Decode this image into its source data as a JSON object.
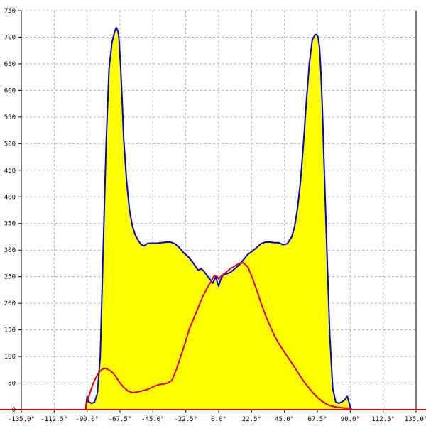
{
  "chart_data": {
    "type": "area",
    "title": "",
    "xlabel": "",
    "ylabel": "",
    "xlim": [
      -135,
      135
    ],
    "ylim": [
      0,
      750
    ],
    "grid": true,
    "legend": "none",
    "x_ticks": [
      -135,
      -112.5,
      -90,
      -67.5,
      -45,
      -22.5,
      0,
      22.5,
      45,
      67.5,
      90,
      112.5,
      135
    ],
    "x_tick_labels": [
      "-135.0°",
      "-112.5°",
      "-90.0°",
      "-67.5°",
      "-45.0°",
      "-22.5°",
      "0.0°",
      "22.5°",
      "45.0°",
      "67.5°",
      "90.0°",
      "112.5°",
      "135.0°"
    ],
    "y_ticks": [
      0,
      50,
      100,
      150,
      200,
      250,
      300,
      350,
      400,
      450,
      500,
      550,
      600,
      650,
      700,
      750
    ],
    "y_tick_labels": [
      "0",
      "50",
      "100",
      "150",
      "200",
      "250",
      "300",
      "350",
      "400",
      "450",
      "500",
      "550",
      "600",
      "650",
      "700",
      "750"
    ],
    "series": [
      {
        "color": "#0000cc",
        "fill": "#ffff00",
        "x": [
          -135,
          -91,
          -90,
          -89,
          -87,
          -85,
          -83,
          -81,
          -79,
          -77,
          -75,
          -73,
          -71,
          -70,
          -69,
          -68.5,
          -68,
          -67,
          -66,
          -65,
          -63,
          -61,
          -59,
          -57,
          -55,
          -53,
          -51,
          -49,
          -47,
          -45,
          -42,
          -39,
          -36,
          -33,
          -30,
          -27,
          -24,
          -21,
          -18,
          -16,
          -14,
          -12,
          -10,
          -8,
          -6,
          -4,
          -2,
          -1,
          0,
          1,
          3,
          5,
          8,
          11,
          14,
          17,
          20,
          23,
          26,
          29,
          32,
          35,
          38,
          41,
          44,
          47,
          50,
          52,
          54,
          56,
          58,
          60,
          62,
          64,
          66,
          67,
          68,
          69,
          70,
          71,
          72,
          74,
          76,
          78,
          80,
          82,
          84,
          86,
          88,
          89,
          90,
          91,
          135
        ],
        "y": [
          0,
          0,
          25,
          15,
          12,
          14,
          30,
          100,
          300,
          500,
          640,
          690,
          712,
          718,
          712,
          705,
          690,
          640,
          580,
          510,
          430,
          375,
          345,
          328,
          318,
          310,
          308,
          312,
          313,
          313,
          313,
          314,
          315,
          315,
          312,
          305,
          295,
          288,
          278,
          270,
          262,
          265,
          260,
          252,
          245,
          238,
          250,
          240,
          232,
          242,
          253,
          255,
          258,
          265,
          272,
          282,
          292,
          298,
          305,
          312,
          315,
          315,
          314,
          314,
          310,
          312,
          325,
          345,
          380,
          430,
          500,
          580,
          650,
          695,
          705,
          705,
          700,
          680,
          630,
          560,
          470,
          300,
          140,
          40,
          15,
          12,
          14,
          18,
          25,
          15,
          5,
          0,
          0
        ]
      },
      {
        "color": "#dd0000",
        "fill": "none",
        "x": [
          -135,
          -91,
          -90,
          -88,
          -86,
          -84,
          -82,
          -80,
          -78,
          -76,
          -74,
          -72,
          -70,
          -68,
          -65,
          -62,
          -59,
          -56,
          -53,
          -50,
          -47,
          -44,
          -41,
          -38,
          -35,
          -32,
          -29,
          -26,
          -23,
          -20,
          -17,
          -14,
          -11,
          -8,
          -5,
          -3,
          -1,
          0,
          2,
          5,
          8,
          11,
          14,
          17,
          20,
          23,
          26,
          29,
          32,
          35,
          38,
          41,
          44,
          47,
          50,
          53,
          56,
          59,
          62,
          65,
          68,
          71,
          74,
          77,
          80,
          83,
          86,
          89,
          90,
          91,
          135
        ],
        "y": [
          0,
          0,
          15,
          32,
          48,
          60,
          70,
          75,
          78,
          76,
          73,
          68,
          61,
          52,
          42,
          35,
          32,
          33,
          35,
          37,
          40,
          44,
          47,
          48,
          50,
          55,
          75,
          100,
          125,
          152,
          172,
          192,
          212,
          228,
          242,
          252,
          250,
          245,
          252,
          258,
          265,
          270,
          275,
          276,
          268,
          248,
          225,
          200,
          178,
          158,
          140,
          125,
          112,
          100,
          88,
          75,
          62,
          50,
          40,
          30,
          22,
          15,
          10,
          7,
          5,
          4,
          3,
          3,
          2,
          0,
          0
        ]
      }
    ]
  }
}
